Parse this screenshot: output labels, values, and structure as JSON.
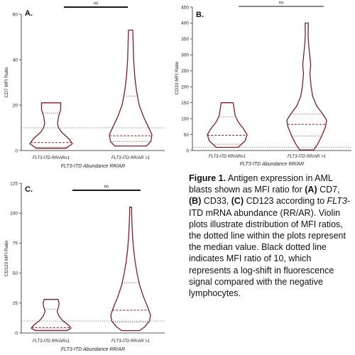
{
  "chart_data": [
    {
      "type": "violin",
      "panel_label": "A.",
      "ylabel": "CD7 MFI Ratio",
      "xlabel_prefix": "FLT3",
      "xlabel_rest": "-ITD Abundance RR/AR",
      "ylim": [
        0,
        60
      ],
      "yticks": [
        0,
        20,
        40,
        60
      ],
      "reference_line": 10,
      "significance": "ns",
      "groups": [
        {
          "label_prefix": "FLT3",
          "label_rest": "-ITD RR/AR≤1",
          "min": 1,
          "max": 21,
          "median": 3.5,
          "q1": 1.5,
          "q3": 16.5,
          "profile": [
            [
              1,
              0.7
            ],
            [
              3,
              1.0
            ],
            [
              5,
              0.85
            ],
            [
              8,
              0.5
            ],
            [
              10,
              0.35
            ],
            [
              12,
              0.3
            ],
            [
              15,
              0.35
            ],
            [
              18,
              0.45
            ],
            [
              21,
              0.45
            ]
          ]
        },
        {
          "label_prefix": "FLT3",
          "label_rest": "-ITD RR/AR >1",
          "min": 2,
          "max": 53,
          "median": 6.5,
          "q1": 4,
          "q3": 24,
          "profile": [
            [
              2,
              0.75
            ],
            [
              4,
              0.95
            ],
            [
              7,
              1.0
            ],
            [
              11,
              0.8
            ],
            [
              15,
              0.6
            ],
            [
              20,
              0.4
            ],
            [
              26,
              0.28
            ],
            [
              32,
              0.2
            ],
            [
              40,
              0.14
            ],
            [
              47,
              0.12
            ],
            [
              53,
              0.1
            ]
          ]
        }
      ]
    },
    {
      "type": "violin",
      "panel_label": "B.",
      "ylabel": "CD33 MFI Ratio",
      "xlabel_prefix": "FLT3",
      "xlabel_rest": "-ITD Abundance RR/AR",
      "ylim": [
        0,
        450
      ],
      "yticks": [
        0,
        50,
        100,
        150,
        200,
        250,
        300,
        350,
        400,
        450
      ],
      "reference_line": 10,
      "significance": "ns",
      "groups": [
        {
          "label_prefix": "FLT3",
          "label_rest": "-ITD RR/AR≤1",
          "min": 10,
          "max": 150,
          "median": 48,
          "q1": 20,
          "q3": 105,
          "profile": [
            [
              10,
              0.55
            ],
            [
              30,
              0.9
            ],
            [
              50,
              1.0
            ],
            [
              70,
              0.8
            ],
            [
              90,
              0.55
            ],
            [
              110,
              0.4
            ],
            [
              130,
              0.35
            ],
            [
              150,
              0.3
            ]
          ]
        },
        {
          "label_prefix": "FLT3",
          "label_rest": "-ITD RR/AR >1",
          "min": 2,
          "max": 400,
          "median": 82,
          "q1": 45,
          "q3": 115,
          "profile": [
            [
              2,
              0.35
            ],
            [
              20,
              0.55
            ],
            [
              45,
              0.75
            ],
            [
              75,
              0.95
            ],
            [
              95,
              1.0
            ],
            [
              115,
              0.8
            ],
            [
              140,
              0.5
            ],
            [
              170,
              0.3
            ],
            [
              200,
              0.22
            ],
            [
              240,
              0.16
            ],
            [
              270,
              0.2
            ],
            [
              300,
              0.15
            ],
            [
              330,
              0.1
            ],
            [
              360,
              0.07
            ],
            [
              390,
              0.08
            ],
            [
              400,
              0.08
            ]
          ]
        }
      ]
    },
    {
      "type": "violin",
      "panel_label": "C.",
      "ylabel": "CD123 MFI Ratio",
      "xlabel_prefix": "FLT3",
      "xlabel_rest": "-ITD Abundance RR/AR",
      "ylim": [
        0,
        125
      ],
      "yticks": [
        0,
        25,
        50,
        75,
        100,
        125
      ],
      "reference_line": 10,
      "significance": "ns",
      "groups": [
        {
          "label_prefix": "FLT3",
          "label_rest": "-ITD RR/AR≤1",
          "min": 2,
          "max": 28,
          "median": 4.5,
          "q1": 3,
          "q3": 20,
          "profile": [
            [
              2,
              0.8
            ],
            [
              4,
              1.0
            ],
            [
              7,
              0.85
            ],
            [
              10,
              0.6
            ],
            [
              14,
              0.4
            ],
            [
              18,
              0.3
            ],
            [
              22,
              0.38
            ],
            [
              25,
              0.4
            ],
            [
              28,
              0.35
            ]
          ]
        },
        {
          "label_prefix": "FLT3",
          "label_rest": "-ITD RR/AR >1",
          "min": 2,
          "max": 105,
          "median": 19,
          "q1": 9,
          "q3": 42,
          "profile": [
            [
              2,
              0.45
            ],
            [
              5,
              0.7
            ],
            [
              10,
              0.95
            ],
            [
              15,
              1.0
            ],
            [
              22,
              0.85
            ],
            [
              30,
              0.65
            ],
            [
              40,
              0.45
            ],
            [
              50,
              0.32
            ],
            [
              60,
              0.22
            ],
            [
              70,
              0.15
            ],
            [
              80,
              0.1
            ],
            [
              90,
              0.07
            ],
            [
              100,
              0.05
            ],
            [
              105,
              0.05
            ]
          ]
        }
      ]
    }
  ],
  "caption": {
    "figure_label": "Figure 1.",
    "text_1": " Antigen expression in AML blasts shown as MFI ratio for ",
    "a": "(A)",
    "text_2": " CD7, ",
    "b": "(B)",
    "text_3": " CD33, ",
    "c": "(C)",
    "text_4": " CD123 according to ",
    "gene": "FLT3",
    "text_5": "-ITD mRNA abundance (RR/AR). Violin plots illustrate distribution of MFI ratios, the dotted line within the plots represent the median value. Black dotted line indicates MFI ratio of 10, which represents a log-shift in fluorescence signal compared with the negative lymphocytes."
  },
  "colors": {
    "violin_stroke": "#7a1f2b",
    "axis": "#222222",
    "reference_line": "#888888",
    "significance_bar": "#1a1a1a",
    "significance_bar_B": "#888888"
  }
}
